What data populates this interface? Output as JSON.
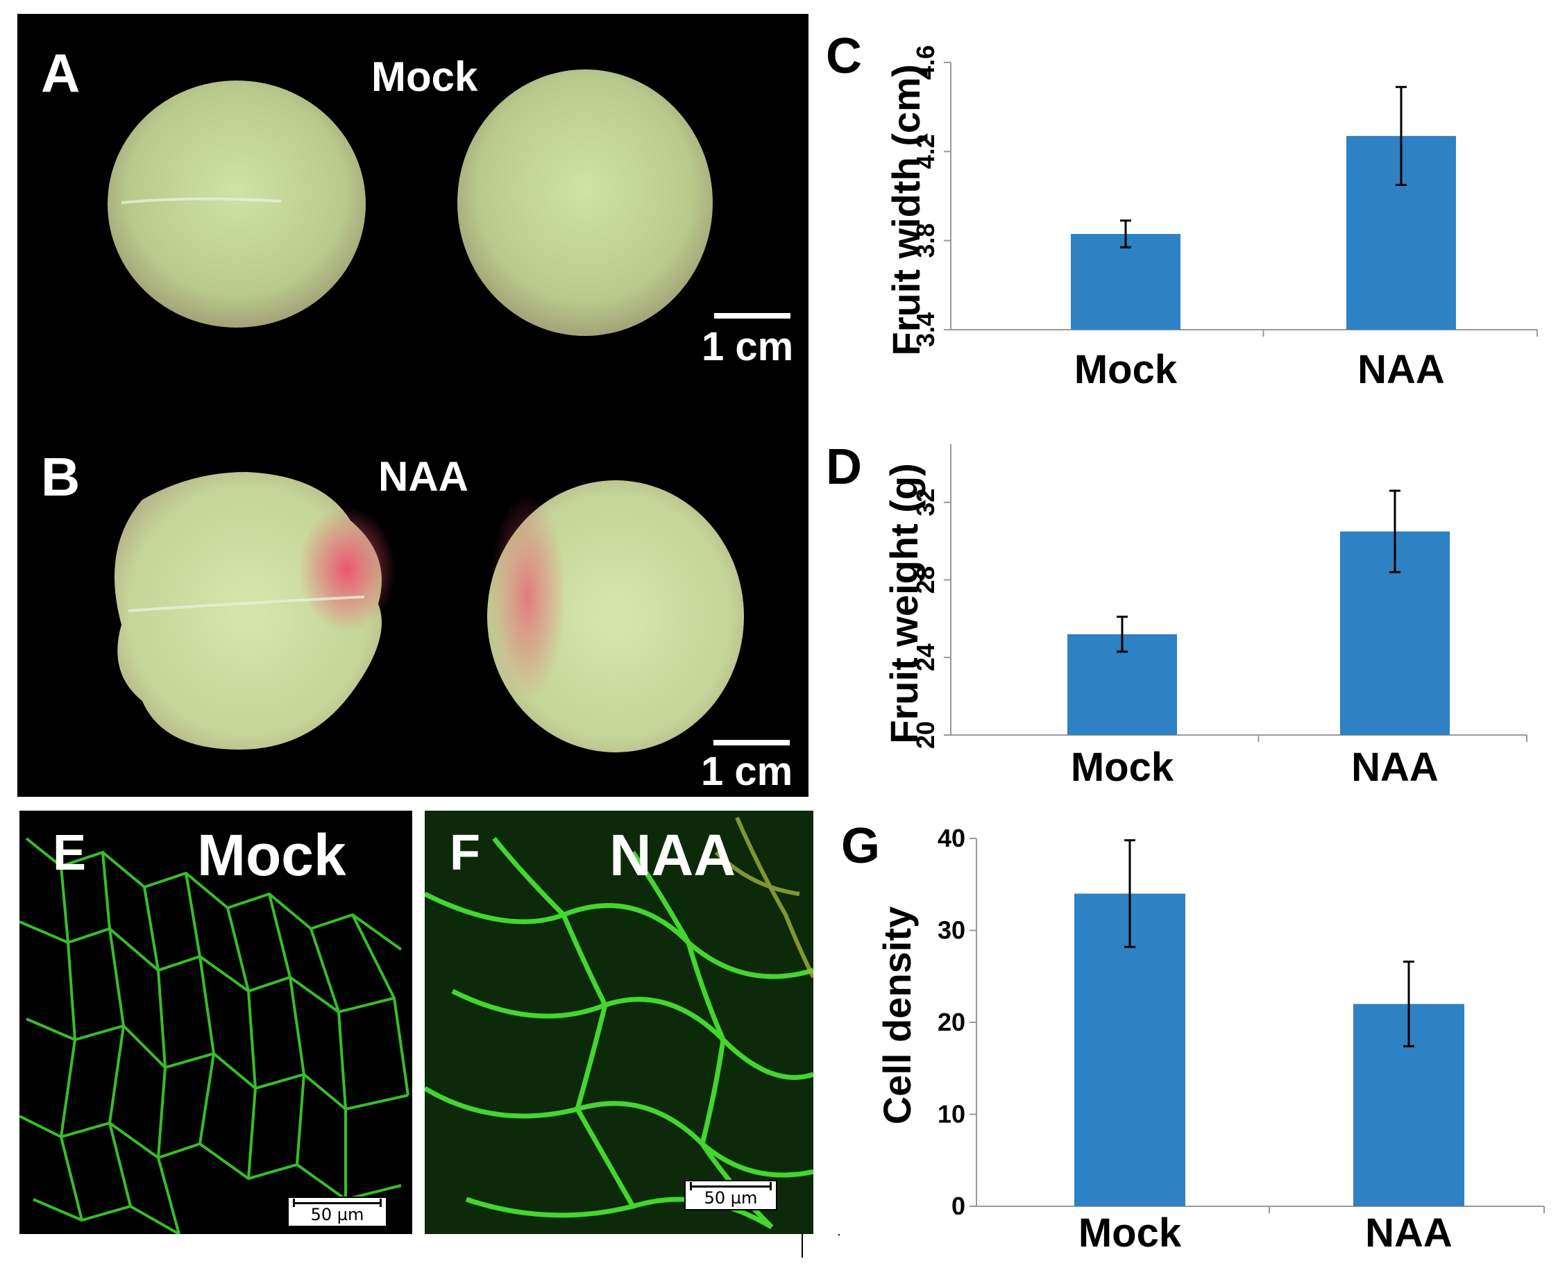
{
  "panels": {
    "a": {
      "letter": "A",
      "label": "Mock",
      "scale": "1 cm"
    },
    "b": {
      "letter": "B",
      "label": "NAA",
      "scale": "1 cm"
    },
    "e": {
      "letter": "E",
      "label": "Mock",
      "scale": "50 µm"
    },
    "f": {
      "letter": "F",
      "label": "NAA",
      "scale": "50 µm"
    },
    "c": {
      "letter": "C"
    },
    "d": {
      "letter": "D"
    },
    "g": {
      "letter": "G"
    }
  },
  "colors": {
    "bar": "#2e81c2",
    "fruit_green": "#c9dd9f",
    "blush": "#e85a78",
    "cell_wall": "#3fd22f"
  },
  "chart_data": [
    {
      "id": "C",
      "type": "bar",
      "categories": [
        "Mock",
        "NAA"
      ],
      "values": [
        3.83,
        4.27
      ],
      "errors": [
        0.06,
        0.22
      ],
      "ylabel": "Fruit width (cm)",
      "xlabel": "",
      "ylim": [
        3.4,
        4.6
      ],
      "yticks": [
        "3.4",
        "3.8",
        "4.2",
        "4.6"
      ],
      "grid": false
    },
    {
      "id": "D",
      "type": "bar",
      "categories": [
        "Mock",
        "NAA"
      ],
      "values": [
        25.2,
        30.5
      ],
      "errors": [
        0.9,
        2.1
      ],
      "ylabel": "Fruit weight (g)",
      "xlabel": "",
      "ylim": [
        20,
        35
      ],
      "yticks": [
        "20",
        "24",
        "28",
        "32"
      ],
      "grid": false
    },
    {
      "id": "G",
      "type": "bar",
      "categories": [
        "Mock",
        "NAA"
      ],
      "values": [
        34,
        22
      ],
      "errors": [
        5.8,
        4.6
      ],
      "ylabel": "Cell density",
      "xlabel": "",
      "ylim": [
        0,
        40
      ],
      "yticks": [
        "0",
        "10",
        "20",
        "30",
        "40"
      ],
      "grid": false
    }
  ]
}
